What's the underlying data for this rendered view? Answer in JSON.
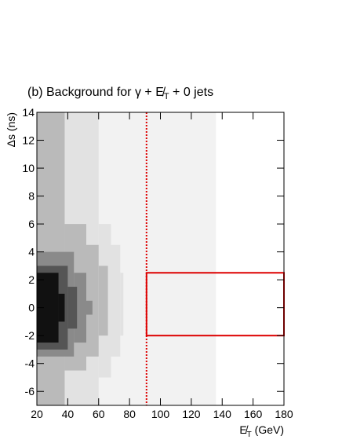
{
  "chart_data": {
    "type": "heatmap",
    "title": "(b)   Background for γ + E̸",
    "title_subscript": "T",
    "title_suffix": " + 0 jets",
    "xlabel": "E̸",
    "xlabel_subscript": "T",
    "xlabel_suffix": " (GeV)",
    "ylabel": "Δs (ns)",
    "xlim": [
      20,
      180
    ],
    "ylim": [
      -7,
      14
    ],
    "xticks": [
      20,
      40,
      60,
      80,
      100,
      120,
      140,
      160,
      180
    ],
    "yticks": [
      -6,
      -4,
      -2,
      0,
      2,
      4,
      6,
      8,
      10,
      12,
      14
    ],
    "level_colors": [
      "#f2f2f2",
      "#e2e2e2",
      "#bababa",
      "#8a8a8a",
      "#555555",
      "#111111"
    ],
    "cells": [
      [
        20,
        136,
        -7,
        14,
        0
      ],
      [
        20,
        60,
        -7,
        14,
        1
      ],
      [
        60,
        68,
        -5,
        6,
        1
      ],
      [
        68,
        74,
        -3.5,
        4.5,
        1
      ],
      [
        74,
        76,
        -2,
        2.5,
        1
      ],
      [
        20,
        38,
        -7,
        14,
        2
      ],
      [
        38,
        52,
        -4.5,
        6,
        2
      ],
      [
        52,
        60,
        -3.5,
        4.5,
        2
      ],
      [
        60,
        66,
        -2,
        3,
        2
      ],
      [
        20,
        44,
        -3.5,
        4,
        3
      ],
      [
        44,
        52,
        -2.5,
        2.5,
        3
      ],
      [
        52,
        56,
        -0.5,
        0.5,
        3
      ],
      [
        20,
        40,
        -3,
        3,
        4
      ],
      [
        40,
        46,
        -1.5,
        1.5,
        4
      ],
      [
        20,
        34,
        -2.5,
        2.5,
        5
      ],
      [
        34,
        38,
        -1,
        1,
        5
      ]
    ],
    "cut_line": 91,
    "signal_box": [
      91,
      180,
      -2,
      2.5
    ],
    "cut_color": "#dd0000"
  }
}
